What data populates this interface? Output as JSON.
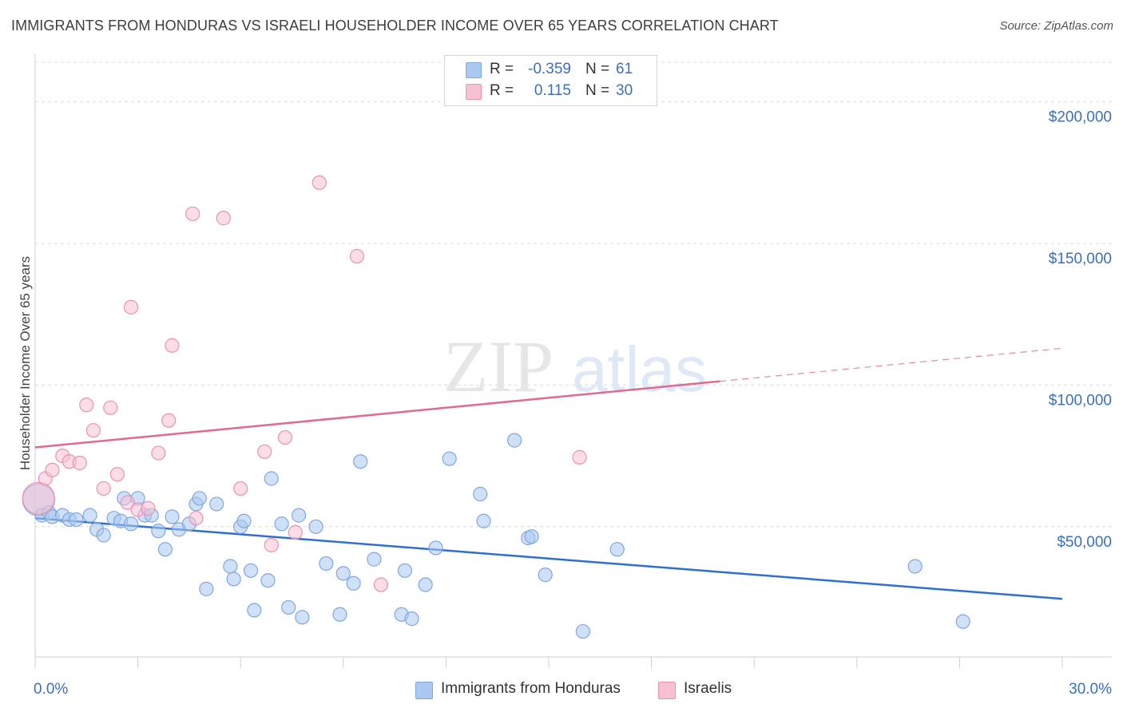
{
  "title": "IMMIGRANTS FROM HONDURAS VS ISRAELI HOUSEHOLDER INCOME OVER 65 YEARS CORRELATION CHART",
  "source": "Source: ZipAtlas.com",
  "watermark": {
    "zip": "ZIP",
    "atlas": "atlas"
  },
  "stats": [
    {
      "r_label": "R =",
      "r_value": "-0.359",
      "n_label": "N =",
      "n_value": "61",
      "color": "#aac8f0",
      "border": "#7ea8e0"
    },
    {
      "r_label": "R =",
      "r_value": "0.115",
      "n_label": "N =",
      "n_value": "30",
      "color": "#f7c1d3",
      "border": "#ec92b2"
    }
  ],
  "legend": [
    {
      "label": "Immigrants from Honduras",
      "color": "#aac8f0",
      "border": "#7ea8e0"
    },
    {
      "label": "Israelis",
      "color": "#f7c1d3",
      "border": "#ec92b2"
    }
  ],
  "chart_data": {
    "type": "scatter",
    "ylabel": "Householder Income Over 65 years",
    "xlabel": "",
    "xlim": [
      0,
      30
    ],
    "ylim": [
      4000,
      214000
    ],
    "x_tick_labels": [
      {
        "value": 0,
        "label": "0.0%"
      },
      {
        "value": 30,
        "label": "30.0%"
      }
    ],
    "x_minor_ticks": [
      0,
      3,
      6,
      9,
      12,
      15,
      18,
      21,
      24,
      27,
      30
    ],
    "y_ticks": [
      {
        "value": 50000,
        "label": "$50,000"
      },
      {
        "value": 100000,
        "label": "$100,000"
      },
      {
        "value": 150000,
        "label": "$150,000"
      },
      {
        "value": 200000,
        "label": "$200,000"
      }
    ],
    "grid": true,
    "series": [
      {
        "name": "Immigrants from Honduras",
        "color": "#7ea8e0",
        "fill": "#aac8f0",
        "trend": {
          "x0": 0,
          "y0": 53000,
          "x1": 30,
          "y1": 24500,
          "dash_from": null,
          "color": "#2f6fd0"
        },
        "points": [
          [
            0.1,
            59500,
            "big"
          ],
          [
            0.2,
            54000
          ],
          [
            0.4,
            55000
          ],
          [
            0.5,
            53500
          ],
          [
            0.8,
            54000
          ],
          [
            1.0,
            52500
          ],
          [
            1.2,
            52500
          ],
          [
            1.6,
            54000
          ],
          [
            1.8,
            49000
          ],
          [
            2.0,
            47000
          ],
          [
            2.3,
            53000
          ],
          [
            2.5,
            52000
          ],
          [
            2.6,
            60000
          ],
          [
            2.8,
            51000
          ],
          [
            3.0,
            60000
          ],
          [
            3.2,
            54000
          ],
          [
            3.4,
            54000
          ],
          [
            3.6,
            48500
          ],
          [
            3.8,
            42000
          ],
          [
            4.0,
            53500
          ],
          [
            4.2,
            49000
          ],
          [
            4.5,
            51000
          ],
          [
            4.7,
            58000
          ],
          [
            4.8,
            60000
          ],
          [
            5.0,
            28000
          ],
          [
            5.3,
            58000
          ],
          [
            5.7,
            36000
          ],
          [
            5.8,
            31500
          ],
          [
            6.0,
            50000
          ],
          [
            6.1,
            52000
          ],
          [
            6.3,
            34500
          ],
          [
            6.4,
            20500
          ],
          [
            6.8,
            31000
          ],
          [
            6.9,
            67000
          ],
          [
            7.2,
            51000
          ],
          [
            7.4,
            21500
          ],
          [
            7.7,
            54000
          ],
          [
            7.8,
            18000
          ],
          [
            8.2,
            50000
          ],
          [
            8.5,
            37000
          ],
          [
            8.9,
            19000
          ],
          [
            9.0,
            33500
          ],
          [
            9.3,
            30000
          ],
          [
            9.5,
            73000
          ],
          [
            9.9,
            38500
          ],
          [
            10.7,
            19000
          ],
          [
            10.8,
            34500
          ],
          [
            11.0,
            17500
          ],
          [
            11.4,
            29500
          ],
          [
            11.7,
            42500
          ],
          [
            12.1,
            74000
          ],
          [
            13.0,
            61500
          ],
          [
            13.1,
            52000
          ],
          [
            14.0,
            80500
          ],
          [
            14.4,
            46000
          ],
          [
            14.5,
            46500
          ],
          [
            14.9,
            33000
          ],
          [
            16.0,
            13000
          ],
          [
            17.0,
            42000
          ],
          [
            25.7,
            36000
          ],
          [
            27.1,
            16500
          ]
        ]
      },
      {
        "name": "Israelis",
        "color": "#ec92b2",
        "fill": "#f7c1d3",
        "trend": {
          "x0": 0,
          "y0": 78000,
          "x1": 30,
          "y1": 113000,
          "dash_from": 20,
          "color": "#e06a92"
        },
        "points": [
          [
            0.1,
            60000,
            "big"
          ],
          [
            0.3,
            67000
          ],
          [
            0.5,
            70000
          ],
          [
            0.8,
            75000
          ],
          [
            1.0,
            73000
          ],
          [
            1.3,
            72500
          ],
          [
            1.5,
            93000
          ],
          [
            1.7,
            84000
          ],
          [
            2.0,
            63500
          ],
          [
            2.2,
            92000
          ],
          [
            2.4,
            68500
          ],
          [
            2.7,
            58500
          ],
          [
            2.8,
            127500
          ],
          [
            3.0,
            56000
          ],
          [
            3.3,
            56500
          ],
          [
            3.6,
            76000
          ],
          [
            3.9,
            87500
          ],
          [
            4.0,
            114000
          ],
          [
            4.6,
            160500
          ],
          [
            4.7,
            53000
          ],
          [
            5.5,
            159000
          ],
          [
            6.0,
            63500
          ],
          [
            6.7,
            76500
          ],
          [
            6.9,
            43500
          ],
          [
            7.3,
            81500
          ],
          [
            7.6,
            48000
          ],
          [
            8.3,
            171500
          ],
          [
            9.4,
            145500
          ],
          [
            10.1,
            29500
          ],
          [
            15.9,
            74500
          ]
        ]
      }
    ]
  }
}
